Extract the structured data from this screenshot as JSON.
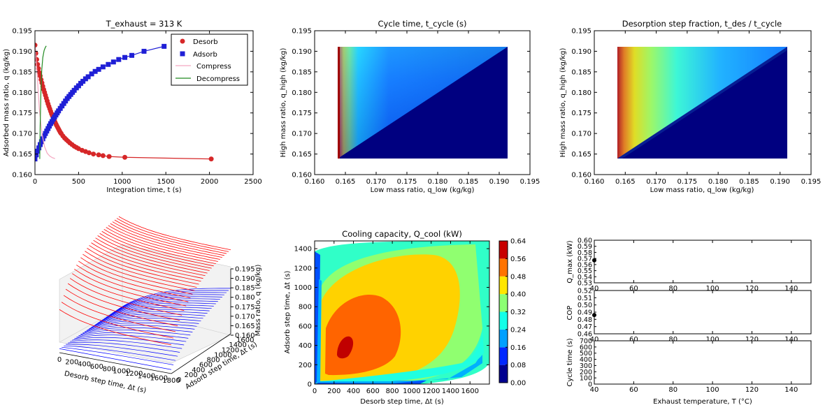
{
  "chart_data": [
    {
      "type": "line",
      "title": "T_exhaust = 313 K",
      "xlabel": "Integration time, t (s)",
      "ylabel": "Adsorbed mass ratio, q (kg/kg)",
      "xlim": [
        0,
        2500
      ],
      "ylim": [
        0.16,
        0.195
      ],
      "xticks": [
        "0",
        "500",
        "1000",
        "1500",
        "2000",
        "2500"
      ],
      "yticks": [
        "0.160",
        "0.165",
        "0.170",
        "0.175",
        "0.180",
        "0.185",
        "0.190",
        "0.195"
      ],
      "legend_position": "top-right",
      "series": [
        {
          "name": "Desorb",
          "marker": "circle",
          "color": "#d62728",
          "x": [
            0,
            10,
            20,
            30,
            40,
            50,
            60,
            70,
            80,
            90,
            100,
            110,
            120,
            130,
            140,
            150,
            160,
            170,
            180,
            190,
            200,
            210,
            220,
            230,
            240,
            250,
            260,
            270,
            280,
            290,
            300,
            320,
            340,
            360,
            380,
            400,
            425,
            450,
            475,
            500,
            540,
            580,
            620,
            670,
            730,
            780,
            850,
            1030,
            2020
          ],
          "y": [
            0.1915,
            0.1895,
            0.188,
            0.1868,
            0.1858,
            0.1848,
            0.184,
            0.1831,
            0.1823,
            0.1815,
            0.1807,
            0.18,
            0.1793,
            0.1786,
            0.1779,
            0.1772,
            0.1766,
            0.176,
            0.1754,
            0.1748,
            0.1743,
            0.1738,
            0.1733,
            0.1728,
            0.1723,
            0.1719,
            0.1715,
            0.1711,
            0.1707,
            0.1703,
            0.17,
            0.1694,
            0.1689,
            0.1685,
            0.1681,
            0.1677,
            0.1673,
            0.1669,
            0.1666,
            0.1663,
            0.1659,
            0.1656,
            0.1653,
            0.165,
            0.1648,
            0.1646,
            0.1644,
            0.1642,
            0.1638
          ]
        },
        {
          "name": "Adsorb",
          "marker": "square",
          "color": "#1f1fd6",
          "x": [
            0,
            15,
            30,
            45,
            60,
            75,
            90,
            105,
            120,
            135,
            150,
            165,
            180,
            195,
            210,
            225,
            240,
            255,
            270,
            290,
            310,
            330,
            350,
            370,
            390,
            410,
            430,
            450,
            475,
            500,
            525,
            550,
            580,
            610,
            650,
            690,
            730,
            780,
            840,
            900,
            960,
            1030,
            1110,
            1250,
            1480
          ],
          "y": [
            0.1638,
            0.1648,
            0.1657,
            0.1665,
            0.1673,
            0.168,
            0.1687,
            0.1694,
            0.17,
            0.1706,
            0.1712,
            0.1718,
            0.1724,
            0.1729,
            0.1735,
            0.174,
            0.1745,
            0.175,
            0.1755,
            0.1761,
            0.1767,
            0.1773,
            0.1779,
            0.1785,
            0.179,
            0.1795,
            0.18,
            0.1805,
            0.1811,
            0.1816,
            0.1822,
            0.1827,
            0.1833,
            0.1838,
            0.1845,
            0.1851,
            0.1856,
            0.1862,
            0.1868,
            0.1874,
            0.188,
            0.1885,
            0.189,
            0.19,
            0.1912
          ]
        },
        {
          "name": "Compress",
          "marker": "none",
          "color": "#f4a6c0",
          "x": [
            0,
            25,
            50,
            80,
            110,
            140,
            170,
            200,
            230
          ],
          "y": [
            0.1915,
            0.1845,
            0.176,
            0.17,
            0.1668,
            0.1652,
            0.1645,
            0.1641,
            0.1639
          ]
        },
        {
          "name": "Decompress",
          "marker": "none",
          "color": "#228b22",
          "x": [
            55,
            60,
            68,
            78,
            90,
            105,
            120,
            130
          ],
          "y": [
            0.1638,
            0.172,
            0.18,
            0.1855,
            0.1885,
            0.1902,
            0.191,
            0.1913
          ]
        }
      ]
    },
    {
      "type": "heatmap",
      "title": "Cycle time, t_cycle (s)",
      "xlabel": "Low mass ratio, q_low (kg/kg)",
      "ylabel": "High mass ratio, q_high (kg/kg)",
      "xlim": [
        0.16,
        0.195
      ],
      "ylim": [
        0.16,
        0.195
      ],
      "data_extent": {
        "q_low": [
          0.1638,
          0.1912
        ],
        "q_high": [
          0.1638,
          0.1912
        ]
      },
      "xticks": [
        "0.160",
        "0.165",
        "0.170",
        "0.175",
        "0.180",
        "0.185",
        "0.190",
        "0.195"
      ],
      "yticks": [
        "0.160",
        "0.165",
        "0.170",
        "0.175",
        "0.180",
        "0.185",
        "0.190",
        "0.195"
      ],
      "colormap": "jet"
    },
    {
      "type": "heatmap",
      "title": "Desorption step fraction, t_des / t_cycle",
      "xlabel": "Low mass ratio, q_low (kg/kg)",
      "ylabel": "High mass ratio, q_high (kg/kg)",
      "xlim": [
        0.16,
        0.195
      ],
      "ylim": [
        0.16,
        0.195
      ],
      "data_extent": {
        "q_low": [
          0.1638,
          0.1912
        ],
        "q_high": [
          0.1638,
          0.1912
        ]
      },
      "xticks": [
        "0.160",
        "0.165",
        "0.170",
        "0.175",
        "0.180",
        "0.185",
        "0.190",
        "0.195"
      ],
      "yticks": [
        "0.160",
        "0.165",
        "0.170",
        "0.175",
        "0.180",
        "0.185",
        "0.190",
        "0.195"
      ],
      "colormap": "jet"
    },
    {
      "type": "area",
      "title": "",
      "xlabel": "Desorb step time, Δt (s)",
      "ylabel": "Adsorb step time, Δt (s)",
      "zlabel": "Mass ratio, q (kg/kg)",
      "xticks": [
        "0",
        "200",
        "400",
        "600",
        "800",
        "1000",
        "1200",
        "1400",
        "1600",
        "1800"
      ],
      "yticks": [
        "0",
        "200",
        "400",
        "600",
        "800",
        "1000",
        "1200",
        "1400",
        "1600"
      ],
      "zticks": [
        "0.160",
        "0.165",
        "0.170",
        "0.175",
        "0.180",
        "0.185",
        "0.190",
        "0.195"
      ],
      "series": [
        {
          "name": "desorb",
          "color": "#ff0000"
        },
        {
          "name": "adsorb",
          "color": "#0000ff"
        }
      ]
    },
    {
      "type": "heatmap",
      "subtype": "filled-contour",
      "title": "Cooling capacity, Q_cool (kW)",
      "xlabel": "Desorb step time, Δt (s)",
      "ylabel": "Adsorb step time, Δt (s)",
      "xlim": [
        0,
        1800
      ],
      "ylim": [
        0,
        1480
      ],
      "xticks": [
        "0",
        "200",
        "400",
        "600",
        "800",
        "1000",
        "1200",
        "1400",
        "1600"
      ],
      "yticks": [
        "0",
        "200",
        "400",
        "600",
        "800",
        "1000",
        "1200",
        "1400"
      ],
      "colorbar": {
        "ticks": [
          "0.00",
          "0.08",
          "0.16",
          "0.24",
          "0.32",
          "0.40",
          "0.48",
          "0.56",
          "0.64"
        ],
        "levels": [
          0.0,
          0.08,
          0.16,
          0.24,
          0.32,
          0.4,
          0.48,
          0.56,
          0.64
        ],
        "colors": [
          "#00008f",
          "#0028ff",
          "#00a0ff",
          "#14ffe8",
          "#8cff73",
          "#ffe600",
          "#ff7300",
          "#c80000"
        ]
      },
      "peak": {
        "x": 330,
        "y": 380,
        "value_range": [
          0.56,
          0.64
        ]
      }
    },
    {
      "type": "scatter",
      "title": "",
      "xlabel": "Exhaust temperature, T (°C)",
      "xlim": [
        40,
        150
      ],
      "xticks": [
        "40",
        "60",
        "80",
        "100",
        "120",
        "140"
      ],
      "panels": [
        {
          "ylabel": "Q_max (kW)",
          "ylim": [
            0.53,
            0.6
          ],
          "yticks": [
            "0.60",
            "0.59",
            "0.58",
            "0.57",
            "0.56",
            "0.55",
            "0.54",
            "0.53"
          ],
          "points": [
            {
              "x": 40,
              "y": 0.567
            }
          ]
        },
        {
          "ylabel": "COP",
          "ylim": [
            0.46,
            0.52
          ],
          "yticks": [
            "0.52",
            "0.51",
            "0.50",
            "0.49",
            "0.48",
            "0.47",
            "0.46"
          ],
          "points": [
            {
              "x": 40,
              "y": 0.486
            }
          ]
        },
        {
          "ylabel": "Cycle time (s)",
          "ylim": [
            0,
            750
          ],
          "yticks": [
            "700",
            "600",
            "500",
            "400",
            "300",
            "200",
            "100",
            "0"
          ],
          "points": []
        }
      ]
    }
  ]
}
